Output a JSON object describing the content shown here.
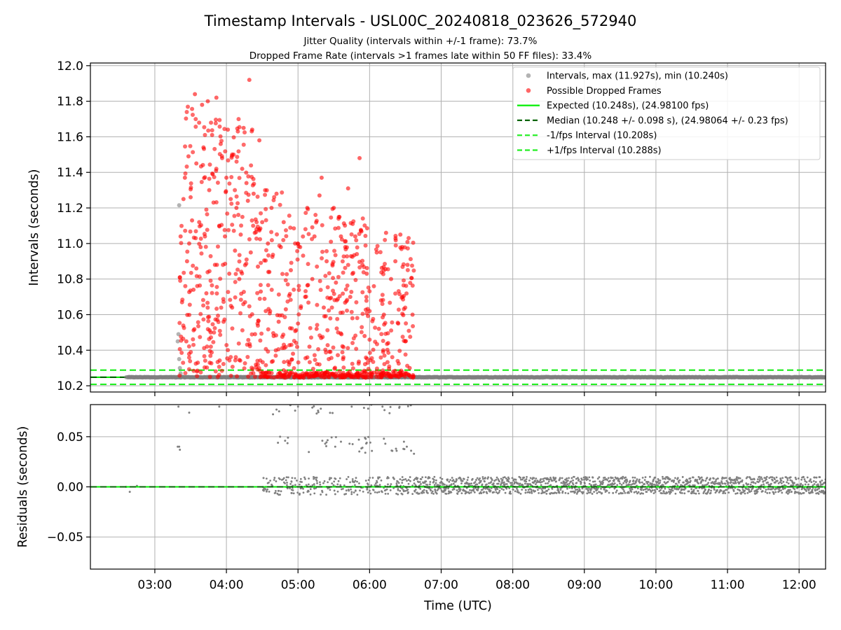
{
  "figure": {
    "title": "Timestamp Intervals - USL00C_20240818_023626_572940",
    "subtitle_1": "Jitter Quality (intervals within +/-1 frame): 73.7%",
    "subtitle_2": "Dropped Frame Rate (intervals >1 frames late within 50 FF files): 33.4%"
  },
  "colors": {
    "intervals": "#808080",
    "dropped": "#ff0000",
    "expected": "#00ee00",
    "median": "#006400",
    "fps_interval": "#22ee22",
    "residuals": "#808080",
    "grid": "#b0b0b0"
  },
  "chart_data": [
    {
      "type": "scatter",
      "panel": "intervals",
      "xlabel": "",
      "ylabel": "Intervals (seconds)",
      "x_unit": "hours UTC",
      "xlim": [
        2.1,
        12.37
      ],
      "ylim": [
        10.165,
        12.015
      ],
      "y_ticks": [
        10.2,
        10.4,
        10.6,
        10.8,
        11.0,
        11.2,
        11.4,
        11.6,
        11.8,
        12.0
      ],
      "y_tick_labels": [
        "10.2",
        "10.4",
        "10.6",
        "10.8",
        "11.0",
        "11.2",
        "11.4",
        "11.6",
        "11.8",
        "12.0"
      ],
      "x_ticks": [
        3,
        4,
        5,
        6,
        7,
        8,
        9,
        10,
        11,
        12
      ],
      "grid": true,
      "legend_position": "top-right",
      "legend": [
        "Intervals, max (11.927s), min (10.240s)",
        "Possible Dropped Frames",
        "Expected (10.248s), (24.98100 fps)",
        "Median (10.248 +/- 0.098 s), (24.98064 +/- 0.23 fps)",
        "-1/fps Interval (10.208s)",
        "+1/fps Interval (10.288s)"
      ],
      "reference_lines": {
        "expected": 10.248,
        "median": 10.248,
        "minus_1_fps": 10.208,
        "plus_1_fps": 10.288
      },
      "series": [
        {
          "name": "Intervals, max (11.927s), min (10.240s)",
          "description_range": {
            "x_start": 2.6,
            "x_end": 12.37,
            "typical_y": 10.248
          },
          "points": [
            [
              2.6,
              10.248
            ],
            [
              2.7,
              10.248
            ],
            [
              2.8,
              10.248
            ],
            [
              3.0,
              10.248
            ],
            [
              3.2,
              10.248
            ],
            [
              3.34,
              11.215
            ],
            [
              3.33,
              10.49
            ],
            [
              3.32,
              10.45
            ],
            [
              3.34,
              10.35
            ],
            [
              3.35,
              10.3
            ],
            [
              3.36,
              10.27
            ]
          ]
        },
        {
          "name": "Possible Dropped Frames",
          "x_range": [
            3.34,
            6.62
          ],
          "points": [
            [
              3.35,
              10.81
            ],
            [
              3.36,
              11.04
            ],
            [
              3.38,
              10.67
            ],
            [
              3.4,
              11.25
            ],
            [
              3.42,
              11.37
            ],
            [
              3.44,
              10.45
            ],
            [
              3.45,
              10.9
            ],
            [
              3.47,
              11.49
            ],
            [
              3.48,
              11.0
            ],
            [
              3.5,
              11.26
            ],
            [
              3.52,
              11.13
            ],
            [
              3.54,
              10.74
            ],
            [
              3.56,
              11.84
            ],
            [
              3.58,
              11.45
            ],
            [
              3.6,
              10.33
            ],
            [
              3.62,
              11.12
            ],
            [
              3.64,
              10.98
            ],
            [
              3.66,
              11.78
            ],
            [
              3.68,
              11.54
            ],
            [
              3.7,
              11.04
            ],
            [
              3.72,
              10.72
            ],
            [
              3.74,
              11.8
            ],
            [
              3.76,
              11.3
            ],
            [
              3.78,
              10.5
            ],
            [
              3.8,
              11.61
            ],
            [
              3.82,
              11.23
            ],
            [
              3.84,
              10.88
            ],
            [
              3.86,
              11.82
            ],
            [
              3.88,
              10.25
            ],
            [
              3.9,
              11.1
            ],
            [
              3.92,
              11.56
            ],
            [
              3.94,
              11.48
            ],
            [
              3.96,
              10.56
            ],
            [
              3.98,
              11.04
            ],
            [
              4.0,
              11.37
            ],
            [
              4.02,
              11.64
            ],
            [
              4.04,
              10.83
            ],
            [
              4.06,
              11.25
            ],
            [
              4.08,
              10.64
            ],
            [
              4.1,
              11.5
            ],
            [
              4.12,
              10.96
            ],
            [
              4.14,
              11.2
            ],
            [
              4.16,
              11.63
            ],
            [
              4.18,
              10.8
            ],
            [
              4.2,
              11.05
            ],
            [
              4.22,
              11.42
            ],
            [
              4.24,
              11.65
            ],
            [
              4.26,
              10.67
            ],
            [
              4.28,
              11.34
            ],
            [
              4.3,
              11.24
            ],
            [
              4.32,
              11.92
            ],
            [
              4.34,
              10.95
            ],
            [
              4.36,
              11.64
            ],
            [
              4.38,
              11.28
            ],
            [
              4.4,
              10.49
            ],
            [
              4.42,
              11.08
            ],
            [
              4.44,
              10.87
            ],
            [
              4.46,
              11.58
            ],
            [
              4.48,
              10.73
            ],
            [
              4.5,
              11.12
            ],
            [
              4.52,
              10.25
            ],
            [
              4.55,
              10.62
            ],
            [
              4.58,
              11.0
            ],
            [
              4.6,
              10.84
            ],
            [
              4.63,
              11.2
            ],
            [
              4.66,
              10.48
            ],
            [
              4.7,
              11.28
            ],
            [
              4.73,
              10.56
            ],
            [
              4.76,
              10.98
            ],
            [
              4.8,
              11.12
            ],
            [
              4.83,
              10.63
            ],
            [
              4.86,
              10.25
            ],
            [
              4.9,
              10.85
            ],
            [
              4.93,
              10.38
            ],
            [
              4.96,
              11.0
            ],
            [
              5.0,
              10.55
            ],
            [
              5.03,
              10.98
            ],
            [
              5.06,
              10.25
            ],
            [
              5.1,
              10.7
            ],
            [
              5.13,
              11.2
            ],
            [
              5.16,
              10.42
            ],
            [
              5.2,
              10.8
            ],
            [
              5.23,
              11.04
            ],
            [
              5.26,
              10.52
            ],
            [
              5.3,
              11.27
            ],
            [
              5.33,
              11.37
            ],
            [
              5.36,
              10.64
            ],
            [
              5.4,
              10.9
            ],
            [
              5.43,
              10.35
            ],
            [
              5.46,
              11.01
            ],
            [
              5.5,
              11.2
            ],
            [
              5.53,
              10.78
            ],
            [
              5.56,
              10.5
            ],
            [
              5.6,
              11.04
            ],
            [
              5.63,
              10.35
            ],
            [
              5.66,
              10.98
            ],
            [
              5.7,
              11.31
            ],
            [
              5.73,
              10.7
            ],
            [
              5.76,
              10.58
            ],
            [
              5.8,
              11.04
            ],
            [
              5.83,
              10.26
            ],
            [
              5.86,
              11.48
            ],
            [
              5.9,
              10.88
            ],
            [
              5.93,
              10.48
            ],
            [
              5.96,
              10.83
            ],
            [
              6.0,
              10.62
            ],
            [
              6.03,
              10.25
            ],
            [
              6.06,
              10.76
            ],
            [
              6.1,
              10.95
            ],
            [
              6.13,
              10.52
            ],
            [
              6.16,
              10.68
            ],
            [
              6.2,
              10.6
            ],
            [
              6.23,
              11.06
            ],
            [
              6.26,
              10.44
            ],
            [
              6.3,
              10.8
            ],
            [
              6.33,
              10.28
            ],
            [
              6.36,
              10.9
            ],
            [
              6.4,
              10.55
            ],
            [
              6.43,
              11.05
            ],
            [
              6.46,
              10.7
            ],
            [
              6.5,
              10.45
            ],
            [
              6.53,
              10.88
            ],
            [
              6.56,
              10.3
            ],
            [
              6.6,
              10.6
            ]
          ]
        }
      ]
    },
    {
      "type": "scatter",
      "panel": "residuals",
      "xlabel": "Time (UTC)",
      "ylabel": "Residuals (seconds)",
      "xlim": [
        2.1,
        12.37
      ],
      "ylim": [
        -0.082,
        0.082
      ],
      "y_ticks": [
        0.05,
        0.0,
        -0.05
      ],
      "y_tick_labels": [
        "0.05",
        "0.00",
        "−0.05"
      ],
      "x_ticks": [
        3,
        4,
        5,
        6,
        7,
        8,
        9,
        10,
        11,
        12
      ],
      "x_tick_labels": [
        "03:00",
        "04:00",
        "05:00",
        "06:00",
        "07:00",
        "08:00",
        "09:00",
        "10:00",
        "11:00",
        "12:00"
      ],
      "grid": true,
      "reference_line": 0.0,
      "series": [
        {
          "name": "Residuals",
          "points": [
            [
              2.6,
              0.0
            ],
            [
              2.65,
              -0.005
            ],
            [
              2.75,
              0.001
            ],
            [
              3.32,
              0.04
            ],
            [
              3.34,
              0.04
            ],
            [
              3.35,
              0.037
            ],
            [
              3.33,
              0.08
            ],
            [
              3.48,
              0.074
            ],
            [
              3.9,
              0.08
            ],
            [
              4.72,
              0.044
            ],
            [
              4.75,
              0.05
            ],
            [
              4.82,
              0.046
            ],
            [
              4.86,
              0.049
            ],
            [
              4.7,
              0.077
            ],
            [
              4.96,
              0.076
            ],
            [
              5.0,
              0.08
            ],
            [
              5.2,
              0.079
            ],
            [
              5.28,
              0.076
            ],
            [
              5.34,
              0.046
            ],
            [
              5.38,
              0.043
            ],
            [
              5.52,
              0.04
            ],
            [
              5.6,
              0.045
            ],
            [
              5.72,
              0.043
            ],
            [
              5.85,
              0.047
            ],
            [
              5.9,
              0.039
            ],
            [
              5.94,
              0.034
            ],
            [
              5.96,
              0.044
            ],
            [
              5.75,
              0.08
            ],
            [
              5.98,
              0.078
            ],
            [
              6.18,
              0.08
            ],
            [
              6.2,
              0.048
            ],
            [
              6.22,
              0.043
            ],
            [
              6.48,
              0.045
            ],
            [
              6.52,
              0.04
            ],
            [
              6.58,
              0.036
            ],
            [
              6.62,
              0.033
            ]
          ],
          "dense_band": {
            "x_range": [
              6.62,
              12.37
            ],
            "y_range": [
              -0.007,
              0.01
            ]
          },
          "sparse_band": {
            "x_range": [
              4.5,
              6.62
            ],
            "y_range": [
              -0.008,
              0.01
            ]
          }
        }
      ]
    }
  ]
}
